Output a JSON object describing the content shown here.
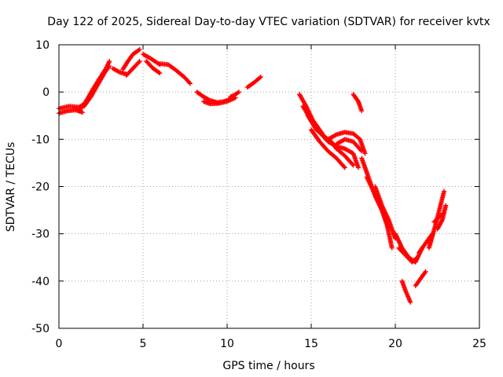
{
  "chart_data": {
    "type": "scatter",
    "title": "Day 122 of 2025, Sidereal Day-to-day VTEC variation (SDTVAR) for receiver kvtx",
    "xlabel": "GPS time / hours",
    "ylabel": "SDTVAR / TECUs",
    "xlim": [
      0,
      25
    ],
    "ylim": [
      -50,
      10
    ],
    "x_ticks": [
      "0",
      "5",
      "10",
      "15",
      "20",
      "25"
    ],
    "y_ticks": [
      "-50",
      "-40",
      "-30",
      "-20",
      "-10",
      "0",
      "10"
    ],
    "grid": true,
    "legend": "none",
    "marker": "plus",
    "color": "#ff0000",
    "tracks": [
      {
        "x": [
          0.0,
          0.5,
          1.0,
          1.4
        ],
        "y": [
          -4.5,
          -4.0,
          -3.8,
          -4.3
        ]
      },
      {
        "x": [
          0.0,
          0.6,
          1.2,
          1.5
        ],
        "y": [
          -3.5,
          -3.0,
          -3.2,
          -2.5
        ]
      },
      {
        "x": [
          1.2,
          1.6,
          2.0,
          2.4,
          2.8,
          3.0
        ],
        "y": [
          -4.0,
          -2.0,
          0.5,
          2.8,
          5.0,
          6.5
        ]
      },
      {
        "x": [
          1.5,
          1.9,
          2.3,
          2.7,
          3.0
        ],
        "y": [
          -3.0,
          -1.0,
          1.5,
          4.0,
          5.5
        ]
      },
      {
        "x": [
          3.2,
          3.6,
          4.0
        ],
        "y": [
          5.0,
          4.2,
          3.8
        ]
      },
      {
        "x": [
          3.8,
          4.1,
          4.4,
          4.8
        ],
        "y": [
          4.8,
          6.5,
          8.0,
          9.0
        ]
      },
      {
        "x": [
          4.0,
          4.4,
          4.8
        ],
        "y": [
          3.5,
          5.0,
          6.5
        ]
      },
      {
        "x": [
          5.0,
          5.5,
          6.0
        ],
        "y": [
          8.0,
          7.0,
          5.8
        ]
      },
      {
        "x": [
          5.2,
          5.6,
          6.0
        ],
        "y": [
          6.5,
          5.0,
          4.0
        ]
      },
      {
        "x": [
          6.0,
          6.5,
          7.0,
          7.5,
          7.8
        ],
        "y": [
          6.0,
          5.8,
          4.5,
          3.0,
          1.8
        ]
      },
      {
        "x": [
          8.2,
          8.6,
          9.0,
          9.4,
          9.8,
          10.2
        ],
        "y": [
          0.0,
          -1.0,
          -1.8,
          -2.2,
          -2.0,
          -1.5
        ]
      },
      {
        "x": [
          8.6,
          9.0,
          9.5,
          10.0,
          10.5
        ],
        "y": [
          -2.0,
          -2.5,
          -2.4,
          -2.0,
          -1.2
        ]
      },
      {
        "x": [
          10.2,
          10.5,
          10.7
        ],
        "y": [
          -1.0,
          -0.5,
          0.0
        ]
      },
      {
        "x": [
          11.2,
          11.6,
          12.0
        ],
        "y": [
          1.0,
          2.0,
          3.2
        ]
      },
      {
        "x": [
          14.3,
          14.7,
          15.1,
          15.5,
          15.9
        ],
        "y": [
          -0.5,
          -3.0,
          -6.0,
          -8.0,
          -10.0
        ]
      },
      {
        "x": [
          14.5,
          15.0,
          15.5,
          16.0,
          16.5,
          17.0,
          17.5,
          17.8
        ],
        "y": [
          -3.0,
          -6.0,
          -8.5,
          -10.5,
          -11.5,
          -12.0,
          -13.0,
          -16.0
        ]
      },
      {
        "x": [
          14.8,
          15.3,
          15.8,
          16.2,
          16.5,
          17.0,
          17.5
        ],
        "y": [
          -5.0,
          -8.0,
          -9.5,
          -10.5,
          -12.0,
          -13.5,
          -15.5
        ]
      },
      {
        "x": [
          15.0,
          15.5,
          16.0,
          16.5,
          17.0
        ],
        "y": [
          -8.0,
          -10.5,
          -12.5,
          -14.0,
          -16.0
        ]
      },
      {
        "x": [
          16.0,
          16.5,
          17.0,
          17.5,
          17.9,
          18.2
        ],
        "y": [
          -10.0,
          -9.0,
          -8.5,
          -8.8,
          -10.0,
          -13.0
        ]
      },
      {
        "x": [
          16.5,
          17.0,
          17.5,
          18.0
        ],
        "y": [
          -11.0,
          -10.0,
          -10.5,
          -12.5
        ]
      },
      {
        "x": [
          17.5,
          17.8,
          18.0
        ],
        "y": [
          -0.5,
          -2.0,
          -4.0
        ]
      },
      {
        "x": [
          18.0,
          18.4,
          18.8,
          19.2,
          19.6
        ],
        "y": [
          -14.0,
          -18.0,
          -22.0,
          -25.0,
          -29.0
        ]
      },
      {
        "x": [
          18.3,
          18.7,
          19.1,
          19.5,
          19.8
        ],
        "y": [
          -18.0,
          -21.0,
          -24.0,
          -28.0,
          -33.0
        ]
      },
      {
        "x": [
          18.8,
          19.2,
          19.6,
          20.0
        ],
        "y": [
          -20.0,
          -24.0,
          -27.0,
          -31.0
        ]
      },
      {
        "x": [
          20.0,
          20.4,
          20.8,
          21.2,
          21.6
        ],
        "y": [
          -30.0,
          -33.0,
          -35.0,
          -36.0,
          -33.0
        ]
      },
      {
        "x": [
          20.2,
          20.6,
          21.0,
          21.3
        ],
        "y": [
          -33.0,
          -34.5,
          -36.0,
          -35.0
        ]
      },
      {
        "x": [
          20.4,
          20.6,
          20.9
        ],
        "y": [
          -40.0,
          -42.0,
          -44.5
        ]
      },
      {
        "x": [
          21.2,
          21.5,
          21.8
        ],
        "y": [
          -41.0,
          -39.5,
          -38.0
        ]
      },
      {
        "x": [
          21.4,
          21.8,
          22.2
        ],
        "y": [
          -34.0,
          -32.0,
          -30.0
        ]
      },
      {
        "x": [
          22.0,
          22.4,
          22.9
        ],
        "y": [
          -33.0,
          -28.0,
          -21.0
        ]
      },
      {
        "x": [
          22.3,
          22.6,
          22.9
        ],
        "y": [
          -27.5,
          -26.5,
          -25.5
        ]
      },
      {
        "x": [
          22.5,
          22.8,
          23.0
        ],
        "y": [
          -29.0,
          -27.0,
          -24.0
        ]
      }
    ]
  }
}
